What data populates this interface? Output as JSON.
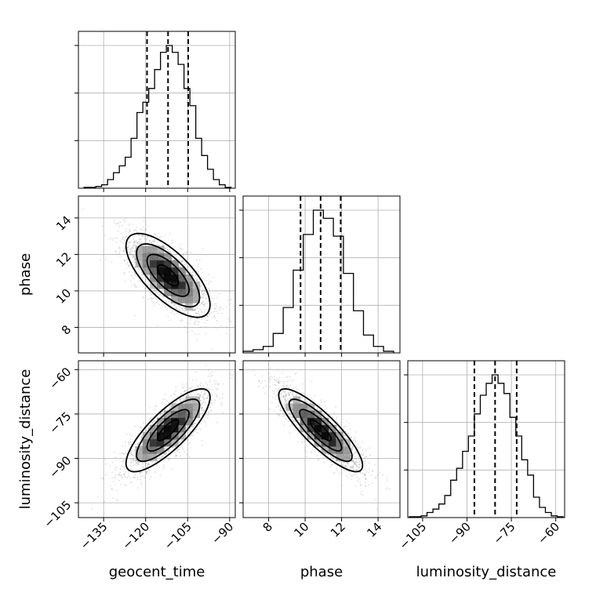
{
  "chart_data": {
    "type": "corner",
    "parameters": [
      "geocent_time",
      "phase",
      "luminosity_distance"
    ],
    "axis_labels": {
      "geocent_time": "geocent_time",
      "phase": "phase",
      "luminosity_distance": "luminosity_distance"
    },
    "ranges": {
      "geocent_time": [
        -144,
        -88
      ],
      "phase": [
        6.6,
        15.2
      ],
      "luminosity_distance": [
        -110,
        -57
      ]
    },
    "ticks": {
      "geocent_time": [
        -135,
        -120,
        -105,
        -90
      ],
      "phase": [
        8,
        10,
        12,
        14
      ],
      "luminosity_distance": [
        -105,
        -90,
        -75,
        -60
      ]
    },
    "tick_labels": {
      "geocent_time": [
        "−135",
        "−120",
        "−105",
        "−90"
      ],
      "phase": [
        "8",
        "10",
        "12",
        "14"
      ],
      "luminosity_distance": [
        "−105",
        "−90",
        "−75",
        "−60"
      ]
    },
    "quantiles": {
      "geocent_time": [
        -119.5,
        -112.0,
        -104.8
      ],
      "phase": [
        9.75,
        10.85,
        11.95
      ],
      "luminosity_distance": [
        -87.5,
        -80.5,
        -73.2
      ]
    },
    "histograms": {
      "geocent_time": {
        "edges": [
          -142.0,
          -139.9,
          -137.8,
          -135.7,
          -133.6,
          -131.5,
          -129.4,
          -127.3,
          -125.2,
          -123.1,
          -121.0,
          -118.9,
          -116.8,
          -114.7,
          -112.6,
          -110.5,
          -108.4,
          -106.3,
          -104.2,
          -102.1,
          -100.0,
          -97.9,
          -95.8,
          -93.7,
          -91.6,
          -89.5
        ],
        "counts": [
          0.5,
          0.5,
          1,
          2,
          5,
          9,
          13,
          18,
          29,
          44,
          50,
          58,
          69,
          79,
          83,
          79,
          72,
          58,
          48,
          29,
          19,
          11,
          5,
          2,
          0.5
        ]
      },
      "phase": {
        "edges": [
          6.6,
          7.15,
          7.7,
          8.25,
          8.8,
          9.35,
          9.9,
          10.45,
          11.0,
          11.55,
          12.1,
          12.65,
          13.2,
          13.75,
          14.3,
          14.85
        ],
        "counts": [
          1,
          2,
          4,
          12,
          28,
          51,
          73,
          88,
          83,
          72,
          49,
          26,
          11,
          4,
          1
        ]
      },
      "luminosity_distance": {
        "edges": [
          -109.5,
          -107.5,
          -105.5,
          -103.5,
          -101.5,
          -99.5,
          -97.5,
          -95.5,
          -93.5,
          -91.5,
          -89.5,
          -87.5,
          -85.5,
          -83.5,
          -81.5,
          -79.5,
          -77.5,
          -75.5,
          -73.5,
          -71.5,
          -69.5,
          -67.5,
          -65.5,
          -63.5,
          -61.5,
          -59.5,
          -57.5
        ],
        "counts": [
          0.5,
          0.5,
          1,
          3,
          5,
          8,
          13,
          22,
          29,
          39,
          48,
          61,
          72,
          79,
          84,
          79,
          73,
          59,
          48,
          34,
          25,
          12,
          6,
          3,
          1,
          0.5
        ]
      }
    },
    "joint": {
      "means": {
        "geocent_time": -112.0,
        "phase": 10.85,
        "luminosity_distance": -80.5
      },
      "stds": {
        "geocent_time": 7.5,
        "phase": 1.15,
        "luminosity_distance": 7.0
      },
      "correlations": {
        "geocent_time|phase": -0.7,
        "geocent_time|luminosity_distance": 0.8,
        "phase|luminosity_distance": -0.85
      },
      "contour_levels_sigma": [
        0.5,
        1.0,
        1.5,
        2.0
      ]
    },
    "grid": true
  }
}
